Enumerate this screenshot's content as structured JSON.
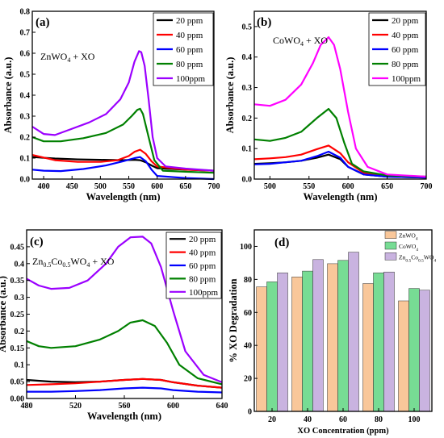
{
  "charts": [
    {
      "panel": "(a)",
      "sample": "ZnWO4 + XO",
      "type": "line",
      "xlabel": "Wavelength (nm)",
      "ylabel": "Absorbance (a.u.)",
      "xlim": [
        380,
        700
      ],
      "ylim": [
        0,
        0.8
      ],
      "xticks": [
        400,
        450,
        500,
        550,
        600,
        650,
        700
      ],
      "yticks": [
        0.0,
        0.1,
        0.2,
        0.3,
        0.4,
        0.5,
        0.6,
        0.7,
        0.8
      ],
      "series": [
        {
          "name": "20 ppm",
          "color": "#000000",
          "x": [
            380,
            420,
            460,
            500,
            540,
            560,
            570,
            580,
            590,
            600,
            650,
            700
          ],
          "y": [
            0.105,
            0.098,
            0.094,
            0.092,
            0.09,
            0.092,
            0.09,
            0.08,
            0.065,
            0.052,
            0.045,
            0.04
          ]
        },
        {
          "name": "40 ppm",
          "color": "#ff0000",
          "x": [
            380,
            420,
            460,
            500,
            530,
            550,
            560,
            570,
            580,
            590,
            600,
            650,
            700
          ],
          "y": [
            0.115,
            0.09,
            0.082,
            0.082,
            0.09,
            0.11,
            0.13,
            0.14,
            0.12,
            0.085,
            0.06,
            0.045,
            0.04
          ]
        },
        {
          "name": "60 ppm",
          "color": "#0000ff",
          "x": [
            380,
            400,
            430,
            470,
            510,
            540,
            560,
            570,
            580,
            590,
            600,
            650,
            700
          ],
          "y": [
            0.045,
            0.04,
            0.038,
            0.048,
            0.065,
            0.085,
            0.1,
            0.105,
            0.085,
            0.045,
            0.015,
            0.005,
            0.0
          ]
        },
        {
          "name": "80 ppm",
          "color": "#008000",
          "x": [
            380,
            400,
            430,
            470,
            510,
            540,
            555,
            565,
            570,
            575,
            585,
            595,
            610,
            650,
            700
          ],
          "y": [
            0.2,
            0.18,
            0.18,
            0.195,
            0.22,
            0.26,
            0.3,
            0.33,
            0.335,
            0.31,
            0.2,
            0.09,
            0.04,
            0.035,
            0.03
          ]
        },
        {
          "name": "100ppm",
          "color": "#9b00ff",
          "x": [
            380,
            400,
            420,
            450,
            480,
            510,
            535,
            550,
            560,
            568,
            572,
            578,
            585,
            592,
            600,
            615,
            650,
            700
          ],
          "y": [
            0.25,
            0.215,
            0.21,
            0.24,
            0.27,
            0.31,
            0.38,
            0.46,
            0.56,
            0.61,
            0.605,
            0.54,
            0.38,
            0.2,
            0.1,
            0.06,
            0.05,
            0.04
          ]
        }
      ]
    },
    {
      "panel": "(b)",
      "sample": "CoWO4 + XO",
      "type": "line",
      "xlabel": "Wavelength (nm)",
      "ylabel": "Absorbance (a.u.)",
      "xlim": [
        480,
        700
      ],
      "ylim": [
        0,
        0.55
      ],
      "xticks": [
        500,
        550,
        600,
        650,
        700
      ],
      "yticks": [
        0.0,
        0.1,
        0.2,
        0.3,
        0.4,
        0.5
      ],
      "series": [
        {
          "name": "20 ppm",
          "color": "#000000",
          "x": [
            480,
            500,
            520,
            540,
            560,
            575,
            590,
            600,
            620,
            650,
            700
          ],
          "y": [
            0.05,
            0.052,
            0.055,
            0.06,
            0.07,
            0.08,
            0.065,
            0.04,
            0.015,
            0.008,
            0.005
          ]
        },
        {
          "name": "40 ppm",
          "color": "#ff0000",
          "x": [
            480,
            500,
            520,
            540,
            560,
            575,
            590,
            600,
            620,
            650,
            700
          ],
          "y": [
            0.065,
            0.068,
            0.072,
            0.08,
            0.098,
            0.11,
            0.085,
            0.055,
            0.02,
            0.01,
            0.005
          ]
        },
        {
          "name": "60 ppm",
          "color": "#0000ff",
          "x": [
            480,
            500,
            520,
            540,
            560,
            575,
            590,
            600,
            620,
            650,
            700
          ],
          "y": [
            0.048,
            0.05,
            0.055,
            0.06,
            0.075,
            0.09,
            0.07,
            0.04,
            0.015,
            0.008,
            0.005
          ]
        },
        {
          "name": "80 ppm",
          "color": "#008000",
          "x": [
            480,
            500,
            520,
            540,
            560,
            575,
            585,
            595,
            605,
            620,
            650,
            700
          ],
          "y": [
            0.13,
            0.125,
            0.135,
            0.155,
            0.2,
            0.23,
            0.2,
            0.12,
            0.05,
            0.025,
            0.012,
            0.008
          ]
        },
        {
          "name": "100ppm",
          "color": "#ff00ff",
          "x": [
            480,
            500,
            520,
            540,
            555,
            565,
            575,
            582,
            590,
            600,
            610,
            625,
            650,
            700
          ],
          "y": [
            0.245,
            0.24,
            0.26,
            0.31,
            0.38,
            0.44,
            0.465,
            0.44,
            0.36,
            0.22,
            0.1,
            0.04,
            0.015,
            0.008
          ]
        }
      ]
    },
    {
      "panel": "(c)",
      "sample": "Zn0.5Co0.5WO4 + XO",
      "type": "line",
      "xlabel": "Wavelength (nm)",
      "ylabel": "Absorbance (a.u.)",
      "xlim": [
        480,
        640
      ],
      "ylim": [
        0,
        0.5
      ],
      "xticks": [
        480,
        520,
        560,
        600,
        640
      ],
      "yticks": [
        0.0,
        0.05,
        0.1,
        0.15,
        0.2,
        0.25,
        0.3,
        0.35,
        0.4,
        0.45
      ],
      "series": [
        {
          "name": "20 ppm",
          "color": "#000000",
          "x": [
            480,
            500,
            520,
            540,
            560,
            575,
            590,
            600,
            620,
            640
          ],
          "y": [
            0.055,
            0.05,
            0.048,
            0.05,
            0.055,
            0.058,
            0.055,
            0.048,
            0.038,
            0.032
          ]
        },
        {
          "name": "40 ppm",
          "color": "#ff0000",
          "x": [
            480,
            500,
            520,
            540,
            560,
            575,
            590,
            600,
            620,
            640
          ],
          "y": [
            0.04,
            0.042,
            0.045,
            0.05,
            0.055,
            0.058,
            0.055,
            0.048,
            0.038,
            0.032
          ]
        },
        {
          "name": "60 ppm",
          "color": "#0000ff",
          "x": [
            480,
            500,
            520,
            540,
            560,
            575,
            590,
            600,
            620,
            640
          ],
          "y": [
            0.02,
            0.02,
            0.022,
            0.025,
            0.03,
            0.032,
            0.03,
            0.025,
            0.02,
            0.018
          ]
        },
        {
          "name": "80 ppm",
          "color": "#008000",
          "x": [
            480,
            490,
            500,
            520,
            540,
            555,
            565,
            575,
            585,
            595,
            605,
            620,
            640
          ],
          "y": [
            0.17,
            0.155,
            0.15,
            0.155,
            0.175,
            0.2,
            0.225,
            0.232,
            0.215,
            0.165,
            0.1,
            0.06,
            0.042
          ]
        },
        {
          "name": "100ppm",
          "color": "#9b00ff",
          "x": [
            480,
            490,
            500,
            515,
            530,
            545,
            555,
            565,
            575,
            582,
            590,
            600,
            610,
            625,
            640
          ],
          "y": [
            0.355,
            0.335,
            0.325,
            0.328,
            0.35,
            0.4,
            0.45,
            0.478,
            0.48,
            0.46,
            0.39,
            0.26,
            0.14,
            0.07,
            0.048
          ]
        }
      ]
    },
    {
      "panel": "(d)",
      "type": "bar",
      "xlabel": "XO Concentration (ppm)",
      "ylabel": "% XO Degradation",
      "categories": [
        "20",
        "40",
        "60",
        "80",
        "100"
      ],
      "ylim": [
        0,
        110
      ],
      "yticks": [
        0,
        20,
        40,
        60,
        80,
        100
      ],
      "series": [
        {
          "name": "ZnWO4",
          "color": "#f9c79a",
          "values": [
            75.5,
            81.5,
            89.5,
            77.5,
            67.0
          ]
        },
        {
          "name": "CoWO4",
          "color": "#77dc94",
          "values": [
            78.5,
            85.0,
            91.5,
            84.0,
            74.5
          ]
        },
        {
          "name": "Zn0.5Co0.5WO4",
          "color": "#c9b3e0",
          "values": [
            84.0,
            92.0,
            96.5,
            84.5,
            73.5
          ]
        }
      ]
    }
  ]
}
